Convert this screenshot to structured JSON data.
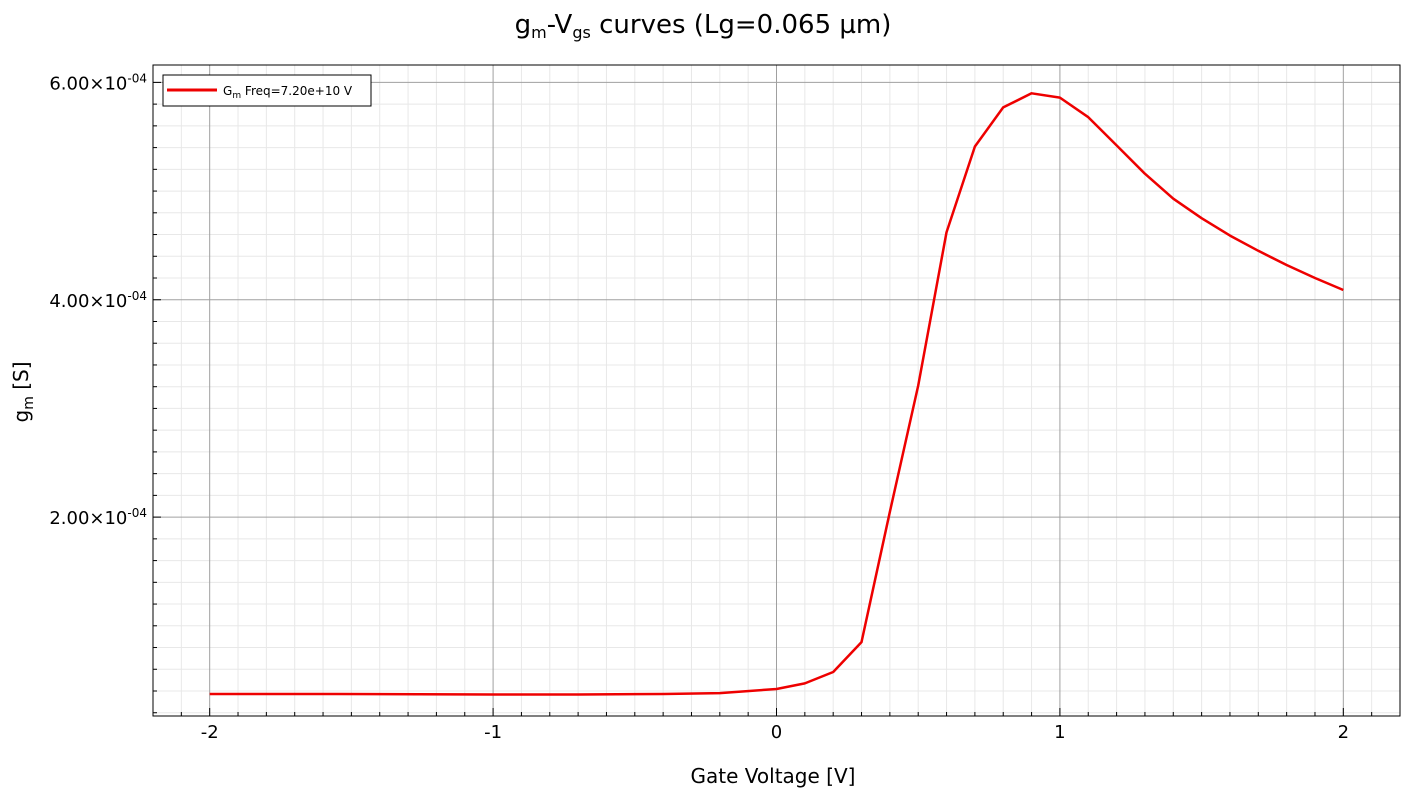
{
  "chart_data": {
    "type": "line",
    "title": {
      "base_g": "g",
      "sub_m": "m",
      "dash_v": "-V",
      "sub_gs": "gs",
      "rest": " curves (Lg=0.065 µm)"
    },
    "xlabel": "Gate Voltage [V]",
    "ylabel": {
      "base": "g",
      "sub": "m",
      "unit": " [S]"
    },
    "xlim": [
      -2.2,
      2.2
    ],
    "ylim": [
      1.7e-05,
      0.000616
    ],
    "x_ticks": [
      -2,
      -1,
      0,
      1,
      2
    ],
    "x_tick_labels": [
      "-2",
      "-1",
      "0",
      "1",
      "2"
    ],
    "y_ticks": [
      0.0002,
      0.0004,
      0.0006
    ],
    "y_tick_labels": [
      {
        "mant": "2.00×10",
        "exp": "-04"
      },
      {
        "mant": "4.00×10",
        "exp": "-04"
      },
      {
        "mant": "6.00×10",
        "exp": "-04"
      }
    ],
    "grid": true,
    "legend_position": "top-left",
    "series": [
      {
        "name": {
          "base": "G",
          "sub": "m",
          "rest": " Freq=7.20e+10 V"
        },
        "color": "#ee0000",
        "x": [
          -2.0,
          -1.55,
          -1.0,
          -0.7,
          -0.4,
          -0.2,
          0.0,
          0.1,
          0.2,
          0.3,
          0.4,
          0.5,
          0.6,
          0.7,
          0.8,
          0.9,
          1.0,
          1.1,
          1.2,
          1.3,
          1.4,
          1.5,
          1.6,
          1.7,
          1.8,
          1.9,
          2.0
        ],
        "y": [
          3.72e-05,
          3.72e-05,
          3.68e-05,
          3.68e-05,
          3.72e-05,
          3.81e-05,
          4.18e-05,
          4.7e-05,
          5.75e-05,
          8.5e-05,
          0.000205,
          0.000321,
          0.000462,
          0.000541,
          0.000577,
          0.00059,
          0.000586,
          0.000568,
          0.000542,
          0.000516,
          0.000493,
          0.000475,
          0.000459,
          0.000445,
          0.000432,
          0.00042,
          0.000409
        ]
      }
    ]
  }
}
